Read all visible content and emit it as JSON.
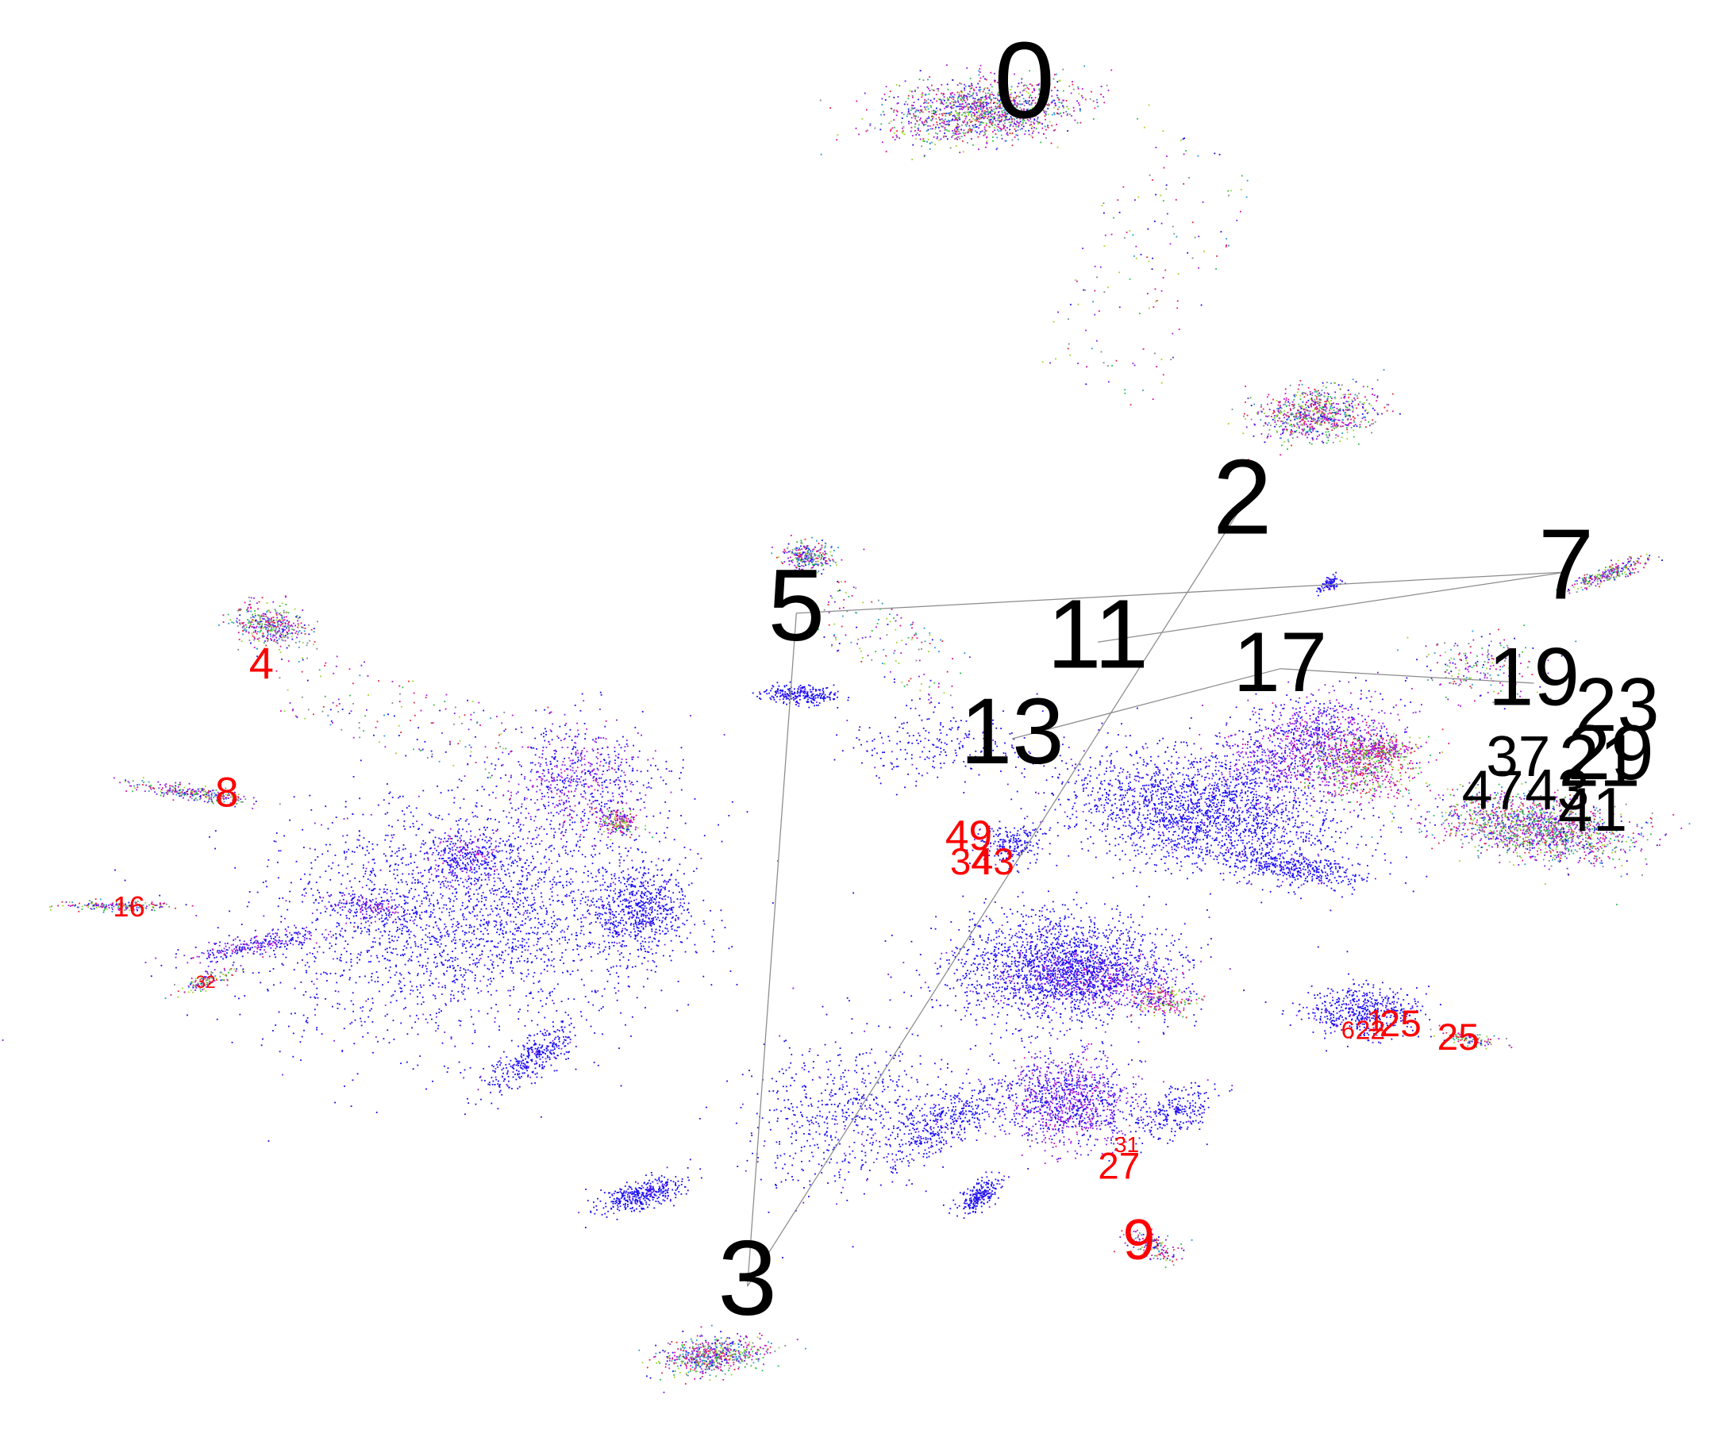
{
  "chart_data": {
    "type": "scatter",
    "title": "",
    "xlabel": "",
    "ylabel": "",
    "grid": false,
    "legend": "none",
    "axes_visible": false,
    "xlim": [
      0,
      1550
    ],
    "ylim": [
      0,
      1290
    ],
    "colors": {
      "major_label": "#000000",
      "minor_label": "#ff0000",
      "edge": "#8c8c8c",
      "point_main": "#1a0ff0",
      "point_palette": [
        "#1a0ff0",
        "#7a1fe8",
        "#b019e0",
        "#e0109a",
        "#e8283a",
        "#2fbf4a",
        "#9fd82a",
        "#2a9ad8",
        "#7d8a8f"
      ]
    },
    "major_nodes": [
      {
        "id": "0",
        "x": 921,
        "y": 80
      },
      {
        "id": "2",
        "x": 1117,
        "y": 455
      },
      {
        "id": "3",
        "x": 672,
        "y": 1158
      },
      {
        "id": "5",
        "x": 716,
        "y": 552
      },
      {
        "id": "7",
        "x": 1408,
        "y": 515
      },
      {
        "id": "11",
        "x": 987,
        "y": 578
      },
      {
        "id": "13",
        "x": 910,
        "y": 665
      },
      {
        "id": "17",
        "x": 1151,
        "y": 602
      },
      {
        "id": "19",
        "x": 1379,
        "y": 615
      },
      {
        "id": "23",
        "x": 1454,
        "y": 640
      },
      {
        "id": "29",
        "x": 1448,
        "y": 683
      },
      {
        "id": "21",
        "x": 1438,
        "y": 690
      },
      {
        "id": "37",
        "x": 1365,
        "y": 685
      },
      {
        "id": "47",
        "x": 1342,
        "y": 715
      },
      {
        "id": "43",
        "x": 1400,
        "y": 715
      },
      {
        "id": "41",
        "x": 1432,
        "y": 733
      }
    ],
    "minor_nodes": [
      {
        "id": "4",
        "x": 235,
        "y": 600
      },
      {
        "id": "8",
        "x": 204,
        "y": 716
      },
      {
        "id": "16",
        "x": 116,
        "y": 818
      },
      {
        "id": "32",
        "x": 185,
        "y": 885
      },
      {
        "id": "49",
        "x": 871,
        "y": 755
      },
      {
        "id": "34",
        "x": 873,
        "y": 778
      },
      {
        "id": "43",
        "x": 893,
        "y": 778
      },
      {
        "id": "1",
        "x": 1237,
        "y": 921
      },
      {
        "id": "25",
        "x": 1259,
        "y": 924
      },
      {
        "id": "25",
        "x": 1311,
        "y": 936
      },
      {
        "id": "6",
        "x": 1212,
        "y": 929
      },
      {
        "id": "22",
        "x": 1232,
        "y": 929
      },
      {
        "id": "31",
        "x": 1013,
        "y": 1032
      },
      {
        "id": "27",
        "x": 1006,
        "y": 1052
      },
      {
        "id": "9",
        "x": 1024,
        "y": 1120
      }
    ],
    "edges": [
      [
        "5",
        "7"
      ],
      [
        "5",
        "3"
      ],
      [
        "11",
        "7"
      ],
      [
        "2",
        "3"
      ],
      [
        "13",
        "17"
      ],
      [
        "17",
        "19"
      ]
    ],
    "clusters": [
      {
        "x": 880,
        "y": 100,
        "rx": 95,
        "ry": 30,
        "rot": -4,
        "n": 1400,
        "mode": "mixed"
      },
      {
        "x": 1180,
        "y": 372,
        "rx": 58,
        "ry": 25,
        "rot": -5,
        "n": 800,
        "mode": "mixed"
      },
      {
        "x": 640,
        "y": 1220,
        "rx": 52,
        "ry": 18,
        "rot": -5,
        "n": 650,
        "mode": "mixed"
      },
      {
        "x": 242,
        "y": 562,
        "rx": 34,
        "ry": 20,
        "rot": 10,
        "n": 420,
        "mode": "mixed"
      },
      {
        "x": 726,
        "y": 500,
        "rx": 26,
        "ry": 15,
        "rot": 0,
        "n": 280,
        "mode": "mixed"
      },
      {
        "x": 1448,
        "y": 515,
        "rx": 42,
        "ry": 8,
        "rot": -20,
        "n": 260,
        "mode": "mixed"
      },
      {
        "x": 172,
        "y": 713,
        "rx": 62,
        "ry": 7,
        "rot": 8,
        "n": 280,
        "mode": "mixed"
      },
      {
        "x": 105,
        "y": 815,
        "rx": 55,
        "ry": 5,
        "rot": 0,
        "n": 180,
        "mode": "mixed"
      },
      {
        "x": 185,
        "y": 882,
        "rx": 30,
        "ry": 7,
        "rot": -20,
        "n": 120,
        "mode": "mixed"
      },
      {
        "x": 1380,
        "y": 745,
        "rx": 95,
        "ry": 30,
        "rot": 8,
        "n": 1600,
        "mode": "mixed"
      },
      {
        "x": 1240,
        "y": 675,
        "rx": 35,
        "ry": 10,
        "rot": 0,
        "n": 260,
        "mode": "warm"
      },
      {
        "x": 1045,
        "y": 900,
        "rx": 32,
        "ry": 14,
        "rot": 0,
        "n": 220,
        "mode": "warm"
      },
      {
        "x": 555,
        "y": 740,
        "rx": 22,
        "ry": 14,
        "rot": 10,
        "n": 200,
        "mode": "warm"
      },
      {
        "x": 1035,
        "y": 1120,
        "rx": 28,
        "ry": 12,
        "rot": 20,
        "n": 160,
        "mode": "mixed"
      },
      {
        "x": 1322,
        "y": 935,
        "rx": 30,
        "ry": 6,
        "rot": 10,
        "n": 100,
        "mode": "mixed"
      },
      {
        "x": 1195,
        "y": 525,
        "rx": 14,
        "ry": 6,
        "rot": -30,
        "n": 90,
        "mode": "blue"
      },
      {
        "x": 720,
        "y": 625,
        "rx": 38,
        "ry": 9,
        "rot": 3,
        "n": 260,
        "mode": "blue"
      },
      {
        "x": 420,
        "y": 820,
        "rx": 200,
        "ry": 120,
        "rot": -10,
        "n": 2600,
        "mode": "blue"
      },
      {
        "x": 520,
        "y": 700,
        "rx": 70,
        "ry": 55,
        "rot": 0,
        "n": 650,
        "mode": "purple"
      },
      {
        "x": 420,
        "y": 770,
        "rx": 45,
        "ry": 25,
        "rot": 0,
        "n": 260,
        "mode": "purple"
      },
      {
        "x": 330,
        "y": 815,
        "rx": 45,
        "ry": 12,
        "rot": 10,
        "n": 180,
        "mode": "purple"
      },
      {
        "x": 230,
        "y": 850,
        "rx": 80,
        "ry": 10,
        "rot": -10,
        "n": 260,
        "mode": "purple"
      },
      {
        "x": 575,
        "y": 820,
        "rx": 45,
        "ry": 40,
        "rot": 0,
        "n": 600,
        "mode": "blue"
      },
      {
        "x": 480,
        "y": 950,
        "rx": 60,
        "ry": 18,
        "rot": -35,
        "n": 350,
        "mode": "blue"
      },
      {
        "x": 1080,
        "y": 730,
        "rx": 140,
        "ry": 55,
        "rot": 8,
        "n": 2100,
        "mode": "blue"
      },
      {
        "x": 1170,
        "y": 670,
        "rx": 90,
        "ry": 45,
        "rot": -15,
        "n": 1100,
        "mode": "purple"
      },
      {
        "x": 1220,
        "y": 690,
        "rx": 60,
        "ry": 35,
        "rot": 0,
        "n": 650,
        "mode": "warm"
      },
      {
        "x": 1160,
        "y": 780,
        "rx": 70,
        "ry": 15,
        "rot": 10,
        "n": 400,
        "mode": "blue"
      },
      {
        "x": 950,
        "y": 870,
        "rx": 110,
        "ry": 55,
        "rot": 0,
        "n": 1700,
        "mode": "blue"
      },
      {
        "x": 980,
        "y": 880,
        "rx": 80,
        "ry": 30,
        "rot": 0,
        "n": 700,
        "mode": "purple"
      },
      {
        "x": 960,
        "y": 990,
        "rx": 65,
        "ry": 45,
        "rot": 0,
        "n": 1100,
        "mode": "purple"
      },
      {
        "x": 850,
        "y": 1010,
        "rx": 80,
        "ry": 25,
        "rot": -30,
        "n": 450,
        "mode": "blue"
      },
      {
        "x": 760,
        "y": 1000,
        "rx": 100,
        "ry": 70,
        "rot": -15,
        "n": 600,
        "mode": "blue"
      },
      {
        "x": 575,
        "y": 1075,
        "rx": 45,
        "ry": 14,
        "rot": -15,
        "n": 380,
        "mode": "blue"
      },
      {
        "x": 880,
        "y": 1075,
        "rx": 25,
        "ry": 12,
        "rot": -35,
        "n": 220,
        "mode": "blue"
      },
      {
        "x": 1225,
        "y": 910,
        "rx": 55,
        "ry": 25,
        "rot": 0,
        "n": 500,
        "mode": "blue"
      },
      {
        "x": 910,
        "y": 760,
        "rx": 35,
        "ry": 20,
        "rot": 0,
        "n": 220,
        "mode": "blue"
      },
      {
        "x": 1055,
        "y": 1000,
        "rx": 45,
        "ry": 22,
        "rot": -20,
        "n": 250,
        "mode": "blue"
      },
      {
        "x": 840,
        "y": 670,
        "rx": 90,
        "ry": 40,
        "rot": 0,
        "n": 220,
        "mode": "blue"
      },
      {
        "x": 1030,
        "y": 240,
        "rx": 60,
        "ry": 120,
        "rot": 25,
        "n": 150,
        "mode": "sparse"
      },
      {
        "x": 350,
        "y": 640,
        "rx": 110,
        "ry": 35,
        "rot": 20,
        "n": 160,
        "mode": "sparse"
      },
      {
        "x": 800,
        "y": 580,
        "rx": 70,
        "ry": 30,
        "rot": 30,
        "n": 150,
        "mode": "sparse"
      },
      {
        "x": 1330,
        "y": 600,
        "rx": 60,
        "ry": 30,
        "rot": 0,
        "n": 200,
        "mode": "mixed"
      }
    ]
  }
}
